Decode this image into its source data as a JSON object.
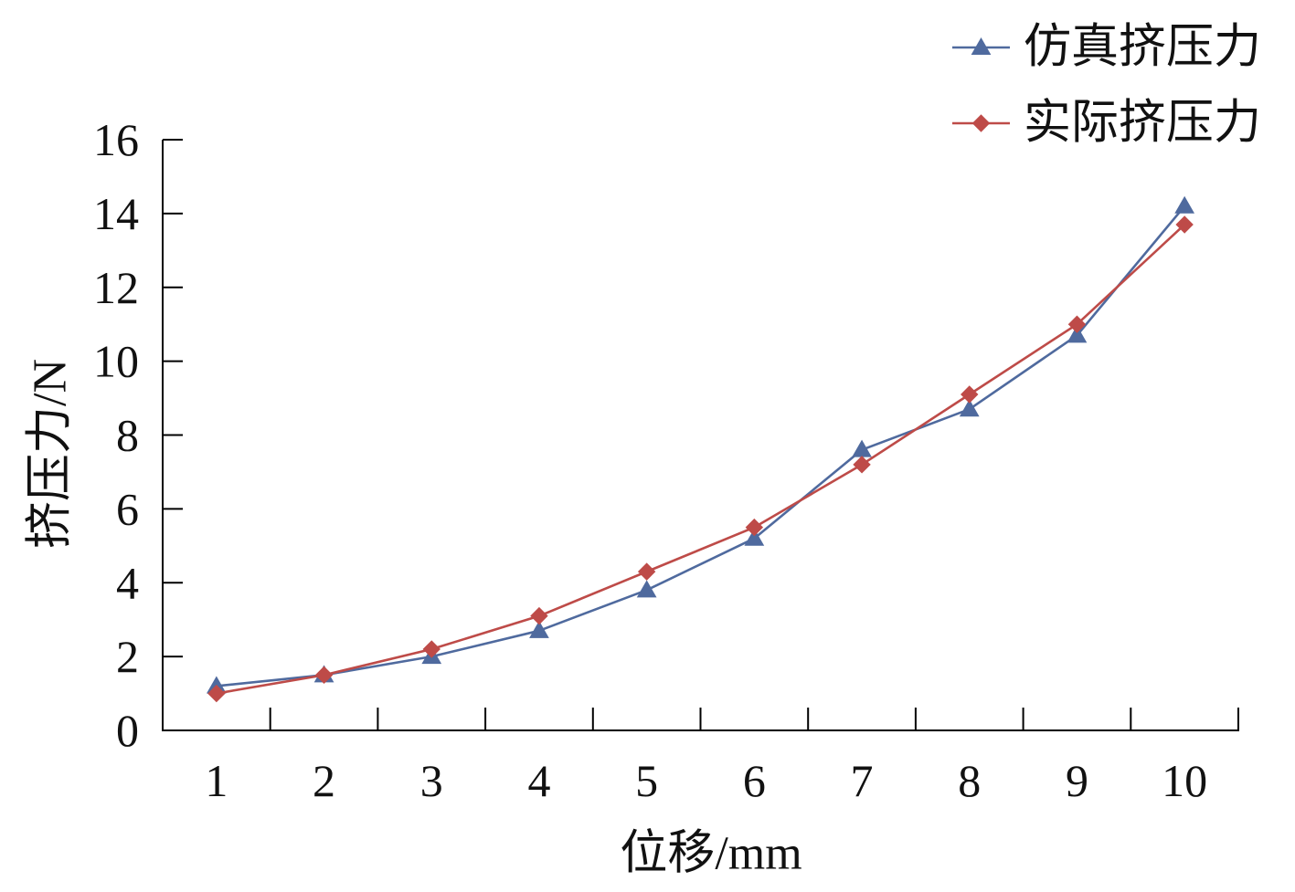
{
  "chart_data": {
    "type": "line",
    "categories": [
      "1",
      "2",
      "3",
      "4",
      "5",
      "6",
      "7",
      "8",
      "9",
      "10"
    ],
    "series": [
      {
        "name": "仿真挤压力",
        "values": [
          1.2,
          1.5,
          2.0,
          2.7,
          3.8,
          5.2,
          7.6,
          8.7,
          10.7,
          14.2
        ],
        "color": "#4F6A9E",
        "marker": "triangle"
      },
      {
        "name": "实际挤压力",
        "values": [
          1.0,
          1.5,
          2.2,
          3.1,
          4.3,
          5.5,
          7.2,
          9.1,
          11.0,
          13.7
        ],
        "color": "#BE4B48",
        "marker": "diamond"
      }
    ],
    "xlabel": "位移/mm",
    "ylabel": "挤压力/N",
    "ylim": [
      0,
      16
    ],
    "yticks": [
      "0",
      "2",
      "4",
      "6",
      "8",
      "10",
      "12",
      "14",
      "16"
    ],
    "grid": false,
    "legend": "top-right"
  }
}
